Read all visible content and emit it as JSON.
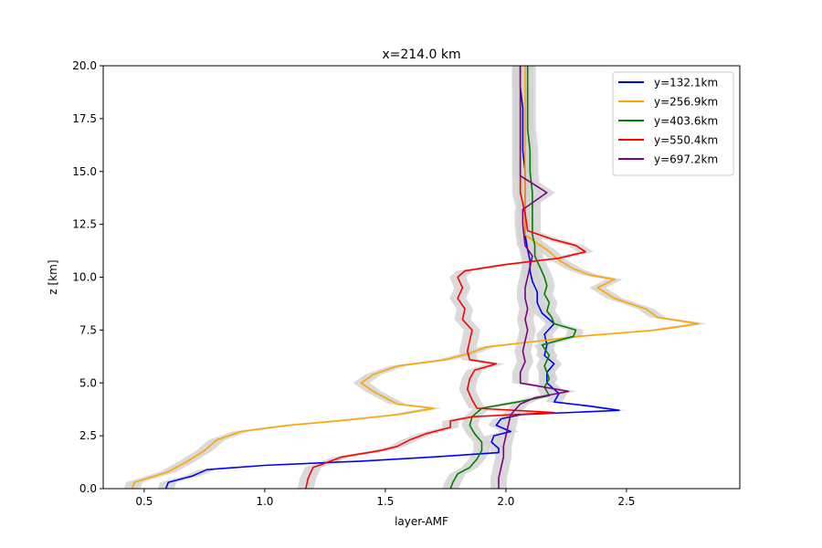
{
  "chart_data": {
    "type": "line",
    "title": "x=214.0 km",
    "xlabel": "layer-AMF",
    "ylabel": "z [km]",
    "xlim": [
      0.33,
      2.97
    ],
    "ylim": [
      0,
      20
    ],
    "xticks": [
      0.5,
      1.0,
      1.5,
      2.0,
      2.5
    ],
    "xtick_labels": [
      "0.5",
      "1.0",
      "1.5",
      "2.0",
      "2.5"
    ],
    "yticks": [
      0,
      2.5,
      5,
      7.5,
      10,
      12.5,
      15,
      17.5,
      20
    ],
    "ytick_labels": [
      "0.0",
      "2.5",
      "5.0",
      "7.5",
      "10.0",
      "12.5",
      "15.0",
      "17.5",
      "20.0"
    ],
    "grid": false,
    "legend_position": "top-right",
    "uncertainty_band_color": "#d3d3d3",
    "series": [
      {
        "name": "y=132.1km",
        "color": "#0000ff",
        "z": [
          0.0,
          0.3,
          0.6,
          0.9,
          1.1,
          1.3,
          1.5,
          1.7,
          1.9,
          2.2,
          2.5,
          2.7,
          3.0,
          3.3,
          3.5,
          3.7,
          3.9,
          4.1,
          4.5,
          5.0,
          5.5,
          5.9,
          6.3,
          6.8,
          7.3,
          7.8,
          8.3,
          8.8,
          9.3,
          9.8,
          10.3,
          10.8,
          11.3,
          12.0,
          13.0,
          14.0,
          15.0,
          16.0,
          17.0,
          18.0,
          19.0,
          20.0
        ],
        "x": [
          0.59,
          0.6,
          0.7,
          0.76,
          1.0,
          1.4,
          1.7,
          1.97,
          1.97,
          1.94,
          1.95,
          2.02,
          1.96,
          1.98,
          2.06,
          2.47,
          2.35,
          2.2,
          2.22,
          2.17,
          2.17,
          2.2,
          2.16,
          2.17,
          2.16,
          2.2,
          2.15,
          2.13,
          2.13,
          2.11,
          2.1,
          2.1,
          2.09,
          2.08,
          2.08,
          2.08,
          2.08,
          2.07,
          2.07,
          2.07,
          2.06,
          2.06
        ]
      },
      {
        "name": "y=256.9km",
        "color": "#ffa500",
        "z": [
          0.0,
          0.3,
          0.8,
          1.3,
          1.8,
          2.3,
          2.7,
          3.0,
          3.2,
          3.5,
          3.8,
          4.0,
          4.3,
          4.6,
          5.0,
          5.4,
          5.8,
          6.1,
          6.4,
          6.7,
          7.0,
          7.2,
          7.5,
          7.8,
          8.1,
          8.5,
          9.0,
          9.5,
          9.9,
          10.1,
          10.4,
          10.8,
          11.0,
          11.3,
          11.6,
          12.0,
          13.0,
          14.0,
          15.0,
          16.0,
          17.0,
          18.0,
          19.0,
          20.0
        ],
        "x": [
          0.45,
          0.46,
          0.6,
          0.68,
          0.75,
          0.8,
          0.9,
          1.1,
          1.3,
          1.55,
          1.7,
          1.55,
          1.5,
          1.45,
          1.4,
          1.45,
          1.55,
          1.75,
          1.85,
          1.92,
          2.15,
          2.3,
          2.62,
          2.8,
          2.63,
          2.58,
          2.45,
          2.38,
          2.45,
          2.35,
          2.28,
          2.22,
          2.2,
          2.17,
          2.13,
          2.08,
          2.08,
          2.08,
          2.08,
          2.08,
          2.08,
          2.08,
          2.08,
          2.08
        ]
      },
      {
        "name": "y=403.6km",
        "color": "#008000",
        "z": [
          0.0,
          0.3,
          0.7,
          1.0,
          1.4,
          1.8,
          2.2,
          2.6,
          3.0,
          3.4,
          3.8,
          4.1,
          4.4,
          4.8,
          5.2,
          5.8,
          6.3,
          6.8,
          7.2,
          7.5,
          7.8,
          8.1,
          8.4,
          8.8,
          9.2,
          9.6,
          10.0,
          10.5,
          11.0,
          11.5,
          12.0,
          13.0,
          14.0,
          15.0,
          16.0,
          17.0,
          18.0,
          19.0,
          20.0
        ],
        "x": [
          1.77,
          1.78,
          1.8,
          1.85,
          1.88,
          1.9,
          1.9,
          1.87,
          1.85,
          1.86,
          1.9,
          2.05,
          2.18,
          2.16,
          2.18,
          2.16,
          2.18,
          2.15,
          2.28,
          2.29,
          2.2,
          2.19,
          2.17,
          2.18,
          2.16,
          2.17,
          2.16,
          2.14,
          2.12,
          2.12,
          2.11,
          2.11,
          2.11,
          2.1,
          2.1,
          2.09,
          2.09,
          2.09,
          2.09
        ]
      },
      {
        "name": "y=550.4km",
        "color": "#ff0000",
        "z": [
          0.0,
          0.5,
          1.0,
          1.5,
          1.8,
          2.0,
          2.3,
          2.6,
          2.9,
          3.2,
          3.4,
          3.6,
          3.8,
          4.2,
          4.7,
          5.2,
          5.6,
          5.9,
          6.1,
          6.5,
          7.0,
          7.5,
          8.0,
          8.5,
          9.0,
          9.5,
          10.0,
          10.3,
          10.6,
          10.9,
          11.2,
          11.5,
          11.8,
          12.2,
          13.0,
          14.0,
          15.0,
          16.0,
          17.0,
          18.0,
          19.0,
          20.0
        ],
        "x": [
          1.17,
          1.18,
          1.2,
          1.32,
          1.48,
          1.55,
          1.6,
          1.67,
          1.77,
          1.77,
          1.86,
          2.2,
          1.88,
          1.86,
          1.84,
          1.85,
          1.87,
          1.96,
          1.85,
          1.84,
          1.85,
          1.86,
          1.82,
          1.83,
          1.8,
          1.82,
          1.8,
          1.83,
          2.0,
          2.22,
          2.33,
          2.29,
          2.19,
          2.09,
          2.08,
          2.06,
          2.06,
          2.06,
          2.06,
          2.06,
          2.06,
          2.06
        ]
      },
      {
        "name": "y=697.2km",
        "color": "#800080",
        "z": [
          0.0,
          0.5,
          1.0,
          1.5,
          2.0,
          2.5,
          3.0,
          3.5,
          4.0,
          4.3,
          4.6,
          5.0,
          5.5,
          6.0,
          6.5,
          7.0,
          7.5,
          8.0,
          8.5,
          9.0,
          9.5,
          10.0,
          10.5,
          11.0,
          11.5,
          12.5,
          13.2,
          14.0,
          14.8,
          15.5,
          16.5,
          17.5,
          18.5,
          19.5,
          20.0
        ],
        "x": [
          1.97,
          1.97,
          1.98,
          1.99,
          1.99,
          2.0,
          2.01,
          2.02,
          2.06,
          2.12,
          2.26,
          2.06,
          2.06,
          2.08,
          2.07,
          2.08,
          2.09,
          2.08,
          2.09,
          2.08,
          2.08,
          2.09,
          2.1,
          2.11,
          2.08,
          2.07,
          2.07,
          2.17,
          2.06,
          2.06,
          2.06,
          2.06,
          2.06,
          2.06,
          2.06
        ]
      }
    ]
  }
}
